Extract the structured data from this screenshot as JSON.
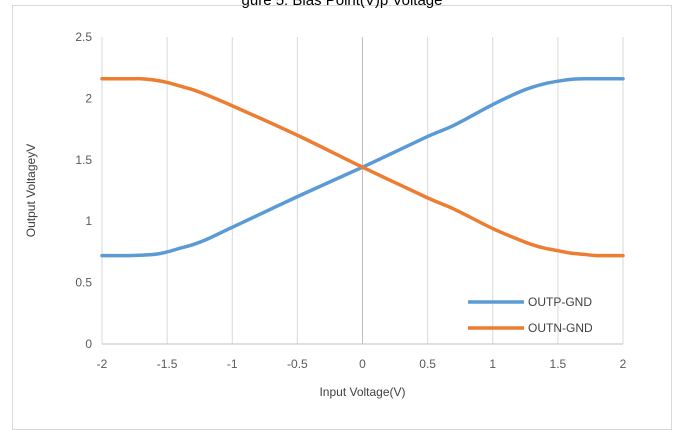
{
  "caption": "gure 5: Bias Point(V)p Voltage",
  "chart_data": {
    "type": "line",
    "title": "",
    "xlabel": "Input Voltage(V)",
    "ylabel": "Output VoltageyV",
    "xlim": [
      -2,
      2
    ],
    "ylim": [
      0,
      2.5
    ],
    "x_ticks": [
      "-2",
      "-1.5",
      "-1",
      "-0.5",
      "0",
      "0.5",
      "1",
      "1.5",
      "2"
    ],
    "y_ticks": [
      "0",
      "0.5",
      "1",
      "1.5",
      "2",
      "2.5"
    ],
    "grid": "vertical",
    "legend_position": "bottom-right",
    "series": [
      {
        "name": "OUTP-GND",
        "color": "#5b9bd5",
        "x": [
          -2,
          -1.8,
          -1.6,
          -1.5,
          -1.4,
          -1.3,
          -1.2,
          -1.1,
          -1,
          -0.5,
          0,
          0.5,
          0.7,
          1,
          1.2,
          1.3,
          1.4,
          1.5,
          1.6,
          1.7,
          1.8,
          2
        ],
        "y": [
          0.72,
          0.72,
          0.73,
          0.75,
          0.78,
          0.81,
          0.85,
          0.9,
          0.95,
          1.2,
          1.44,
          1.69,
          1.78,
          1.95,
          2.05,
          2.09,
          2.12,
          2.14,
          2.155,
          2.16,
          2.16,
          2.16
        ]
      },
      {
        "name": "OUTN-GND",
        "color": "#ed7d31",
        "x": [
          -2,
          -1.8,
          -1.7,
          -1.6,
          -1.5,
          -1.4,
          -1.3,
          -1.2,
          -1,
          -0.5,
          0,
          0.5,
          0.7,
          1,
          1.2,
          1.3,
          1.4,
          1.5,
          1.6,
          1.7,
          1.8,
          2
        ],
        "y": [
          2.16,
          2.16,
          2.16,
          2.15,
          2.13,
          2.1,
          2.07,
          2.03,
          1.94,
          1.7,
          1.44,
          1.19,
          1.1,
          0.94,
          0.85,
          0.81,
          0.78,
          0.76,
          0.74,
          0.73,
          0.72,
          0.72
        ]
      }
    ]
  }
}
